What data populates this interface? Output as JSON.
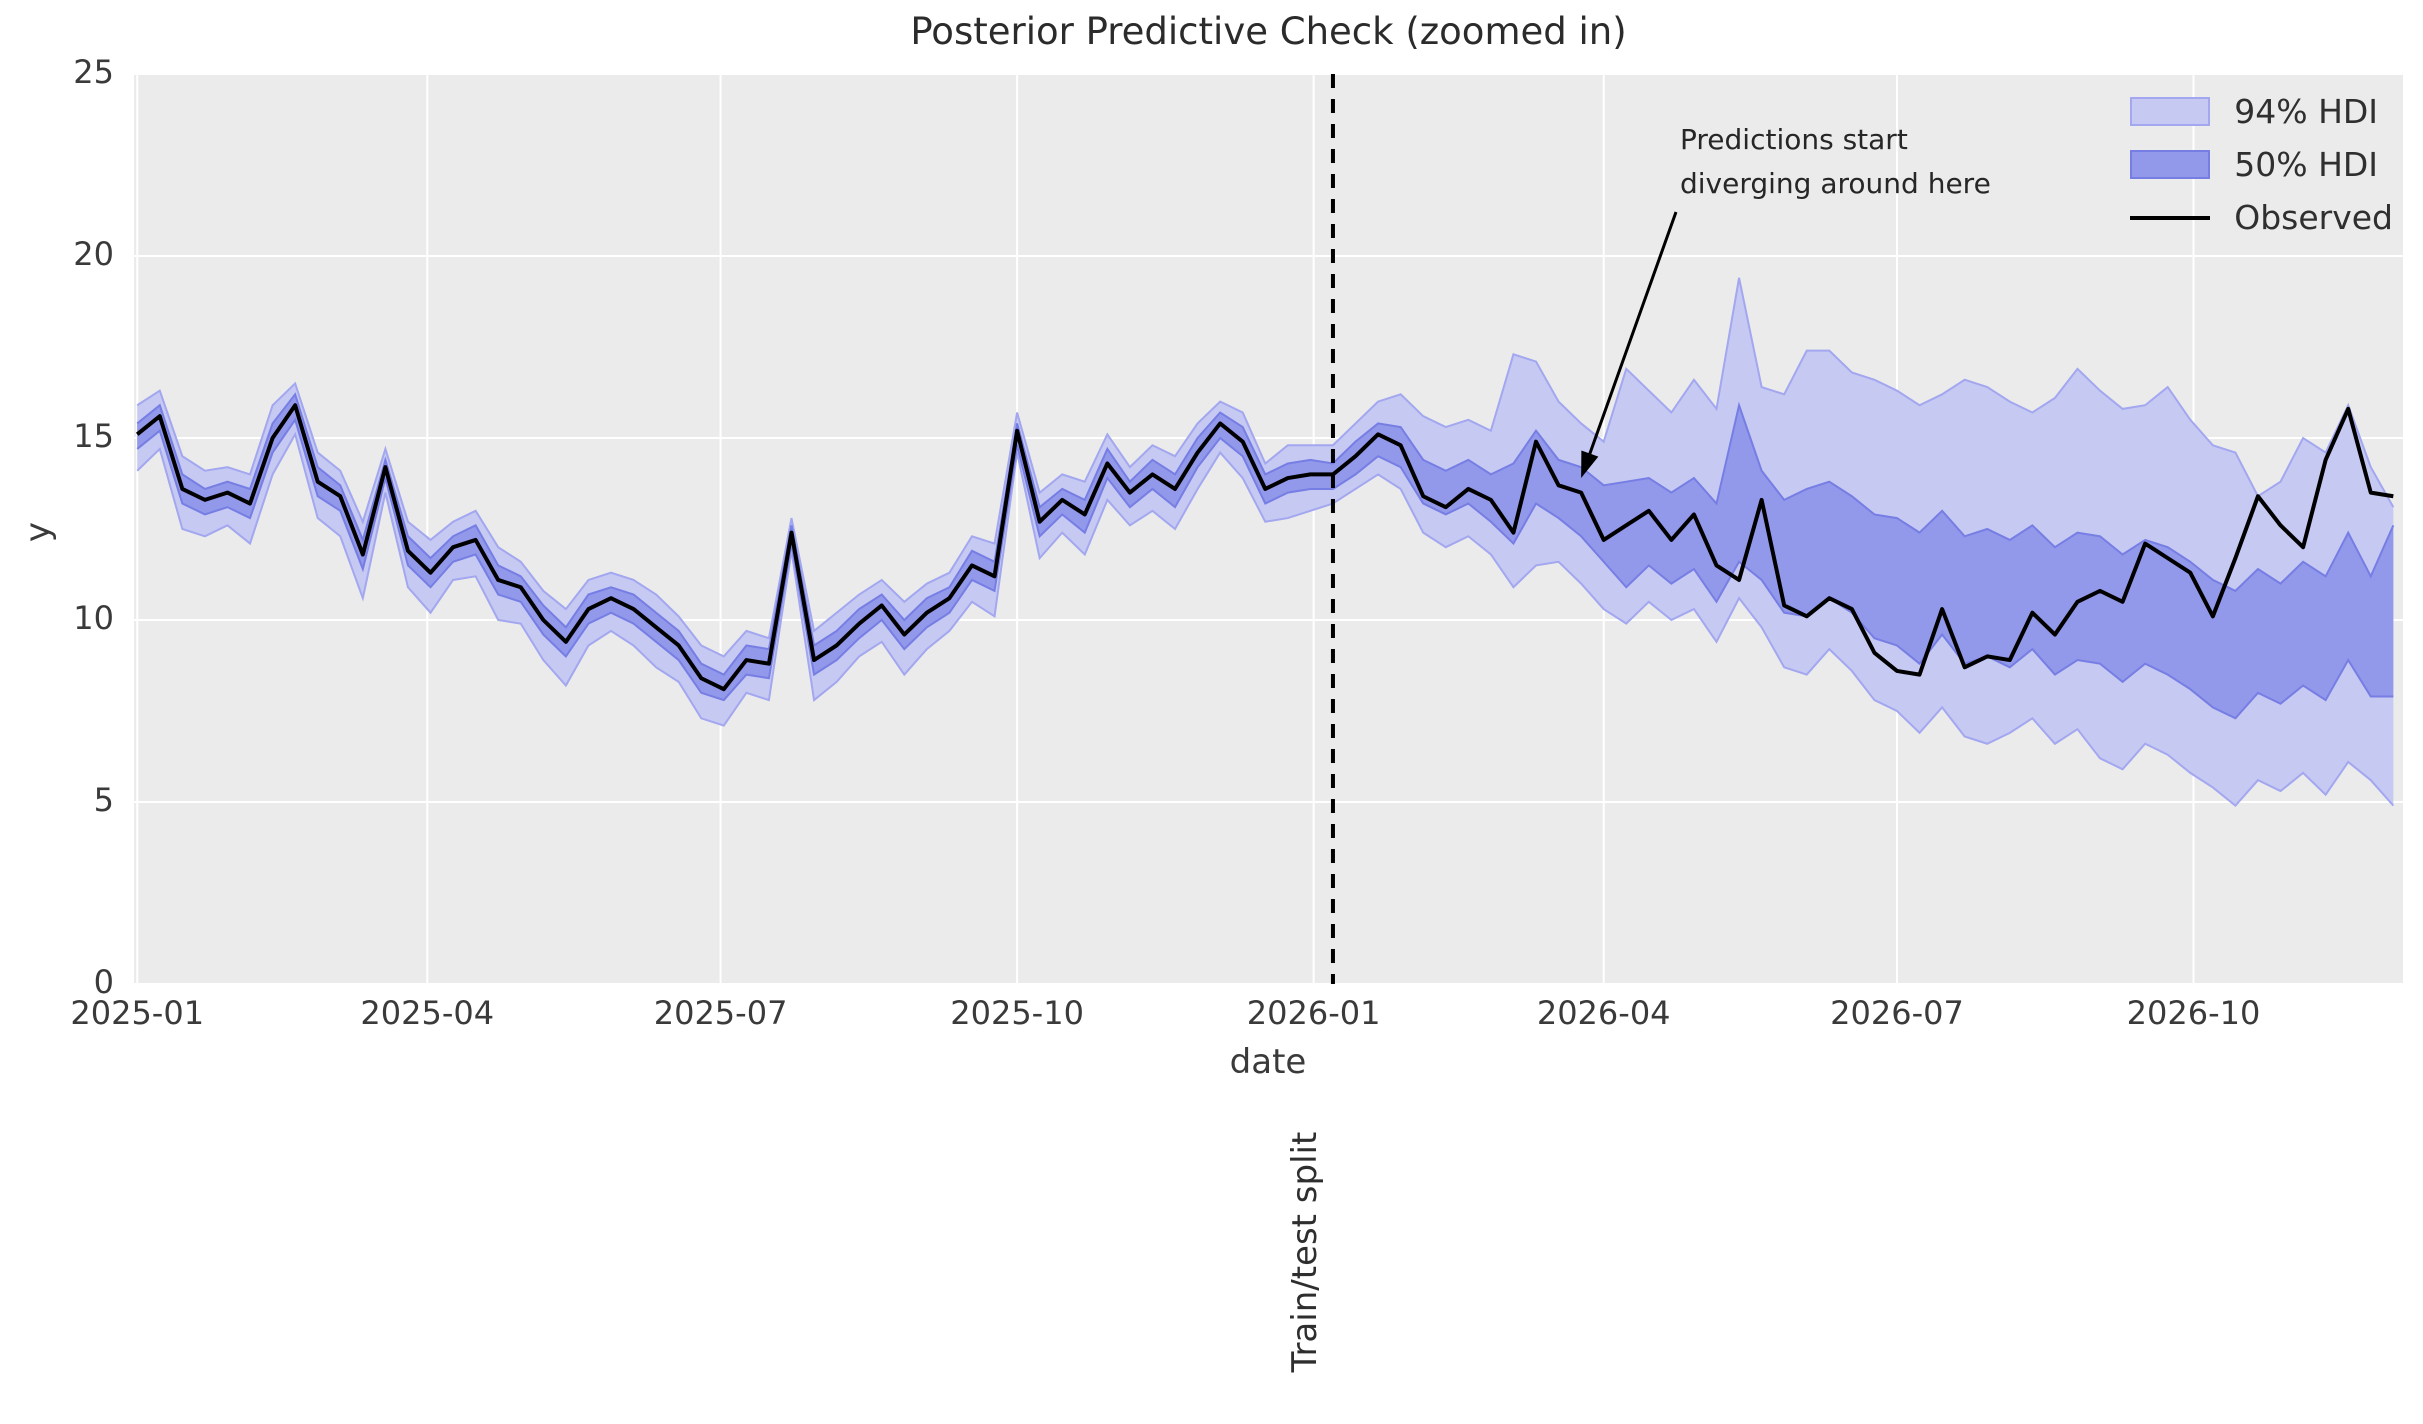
{
  "title": "Posterior Predictive Check (zoomed in)",
  "axes": {
    "xlabel": "date",
    "ylabel": "y",
    "y_ticks": [
      0,
      5,
      10,
      15,
      20,
      25
    ],
    "x_ticks": [
      {
        "label": "2025-01",
        "date": "2025-01-01"
      },
      {
        "label": "2025-04",
        "date": "2025-04-01"
      },
      {
        "label": "2025-07",
        "date": "2025-07-01"
      },
      {
        "label": "2025-10",
        "date": "2025-10-01"
      },
      {
        "label": "2026-01",
        "date": "2026-01-01"
      },
      {
        "label": "2026-04",
        "date": "2026-04-01"
      },
      {
        "label": "2026-07",
        "date": "2026-07-01"
      },
      {
        "label": "2026-10",
        "date": "2026-10-01"
      }
    ]
  },
  "legend": {
    "items": [
      {
        "label": "94% HDI",
        "swatch": "patch",
        "fill": "#c6c9f2",
        "edge": "#a2a7ef"
      },
      {
        "label": "50% HDI",
        "swatch": "patch",
        "fill": "#9298ea",
        "edge": "#767ee4"
      },
      {
        "label": "Observed",
        "swatch": "line",
        "color": "#000000"
      }
    ]
  },
  "annotation": {
    "line1": "Predictions start",
    "line2": "diverging around here",
    "arrow": {
      "date": "2026-03-25",
      "value": 13.9
    }
  },
  "split_line": {
    "label": "Train/test split",
    "date": "2026-01-07"
  },
  "colors": {
    "plot_bg": "#ebebeb",
    "grid": "#ffffff",
    "observed": "#000000",
    "hdi94_fill": "#c6c9f2",
    "hdi94_edge": "#a2a7ef",
    "hdi50_fill": "#9298ea",
    "hdi50_edge": "#767ee4",
    "split": "#000000",
    "text": "#3a3a3a"
  },
  "chart_data": {
    "type": "line",
    "title": "Posterior Predictive Check (zoomed in)",
    "xlabel": "date",
    "ylabel": "y",
    "x_start_date": "2025-01-01",
    "x_freq_days": 7,
    "xlim_dates": [
      "2024-12-31",
      "2026-12-05"
    ],
    "ylim": [
      0,
      25
    ],
    "grid": true,
    "legend_position": "upper right",
    "split_date": "2026-01-07",
    "series": [
      {
        "name": "Observed",
        "type": "line",
        "values": [
          15.1,
          15.6,
          13.6,
          13.3,
          13.5,
          13.2,
          15.0,
          15.9,
          13.8,
          13.4,
          11.8,
          14.2,
          11.9,
          11.3,
          12.0,
          12.2,
          11.1,
          10.9,
          10.0,
          9.4,
          10.3,
          10.6,
          10.3,
          9.8,
          9.3,
          8.4,
          8.1,
          8.9,
          8.8,
          12.4,
          8.9,
          9.3,
          9.9,
          10.4,
          9.6,
          10.2,
          10.6,
          11.5,
          11.2,
          15.2,
          12.7,
          13.3,
          12.9,
          14.3,
          13.5,
          14.0,
          13.6,
          14.6,
          15.4,
          14.9,
          13.6,
          13.9,
          14.0,
          14.0,
          14.5,
          15.1,
          14.8,
          13.4,
          13.1,
          13.6,
          13.3,
          12.4,
          14.9,
          13.7,
          13.5,
          12.2,
          12.6,
          13.0,
          12.2,
          12.9,
          11.5,
          11.1,
          13.3,
          10.4,
          10.1,
          10.6,
          10.3,
          9.1,
          8.6,
          8.5,
          10.3,
          8.7,
          9.0,
          8.9,
          10.2,
          9.6,
          10.5,
          10.8,
          10.5,
          12.1,
          11.7,
          11.3,
          10.1,
          11.7,
          13.4,
          12.6,
          12.0,
          14.4,
          15.8,
          13.5,
          13.4
        ]
      },
      {
        "name": "94% HDI upper",
        "type": "band-edge",
        "values": [
          15.9,
          16.3,
          14.5,
          14.1,
          14.2,
          14.0,
          15.9,
          16.5,
          14.6,
          14.1,
          12.7,
          14.7,
          12.7,
          12.2,
          12.7,
          13.0,
          12.0,
          11.6,
          10.8,
          10.3,
          11.1,
          11.3,
          11.1,
          10.7,
          10.1,
          9.3,
          9.0,
          9.7,
          9.5,
          12.8,
          9.7,
          10.2,
          10.7,
          11.1,
          10.5,
          11.0,
          11.3,
          12.3,
          12.1,
          15.7,
          13.5,
          14.0,
          13.8,
          15.1,
          14.2,
          14.8,
          14.5,
          15.4,
          16.0,
          15.7,
          14.3,
          14.8,
          14.8,
          14.8,
          15.4,
          16.0,
          16.2,
          15.6,
          15.3,
          15.5,
          15.2,
          17.3,
          17.1,
          16.0,
          15.4,
          14.9,
          16.9,
          16.3,
          15.7,
          16.6,
          15.8,
          19.4,
          16.4,
          16.2,
          17.4,
          17.4,
          16.8,
          16.6,
          16.3,
          15.9,
          16.2,
          16.6,
          16.4,
          16.0,
          15.7,
          16.1,
          16.9,
          16.3,
          15.8,
          15.9,
          16.4,
          15.5,
          14.8,
          14.6,
          13.4,
          13.8,
          15.0,
          14.6,
          15.9,
          14.2,
          13.1
        ]
      },
      {
        "name": "94% HDI lower",
        "type": "band-edge",
        "values": [
          14.1,
          14.7,
          12.5,
          12.3,
          12.6,
          12.1,
          14.0,
          15.1,
          12.8,
          12.3,
          10.6,
          13.5,
          10.9,
          10.2,
          11.1,
          11.2,
          10.0,
          9.9,
          8.9,
          8.2,
          9.3,
          9.7,
          9.3,
          8.7,
          8.3,
          7.3,
          7.1,
          8.0,
          7.8,
          11.9,
          7.8,
          8.3,
          9.0,
          9.4,
          8.5,
          9.2,
          9.7,
          10.5,
          10.1,
          14.6,
          11.7,
          12.4,
          11.8,
          13.3,
          12.6,
          13.0,
          12.5,
          13.6,
          14.6,
          13.9,
          12.7,
          12.8,
          13.0,
          13.2,
          13.6,
          14.0,
          13.6,
          12.4,
          12.0,
          12.3,
          11.8,
          10.9,
          11.5,
          11.6,
          11.0,
          10.3,
          9.9,
          10.5,
          10.0,
          10.3,
          9.4,
          10.6,
          9.8,
          8.7,
          8.5,
          9.2,
          8.6,
          7.8,
          7.5,
          6.9,
          7.6,
          6.8,
          6.6,
          6.9,
          7.3,
          6.6,
          7.0,
          6.2,
          5.9,
          6.6,
          6.3,
          5.8,
          5.4,
          4.9,
          5.6,
          5.3,
          5.8,
          5.2,
          6.1,
          5.6,
          4.9
        ]
      },
      {
        "name": "50% HDI upper",
        "type": "band-edge",
        "values": [
          15.4,
          15.9,
          14.0,
          13.6,
          13.8,
          13.6,
          15.4,
          16.2,
          14.2,
          13.7,
          12.2,
          14.4,
          12.3,
          11.7,
          12.3,
          12.6,
          11.5,
          11.2,
          10.4,
          9.8,
          10.7,
          10.9,
          10.7,
          10.2,
          9.7,
          8.8,
          8.5,
          9.3,
          9.2,
          12.6,
          9.3,
          9.7,
          10.3,
          10.7,
          10.0,
          10.6,
          10.9,
          11.9,
          11.6,
          15.4,
          13.1,
          13.6,
          13.3,
          14.7,
          13.8,
          14.4,
          14.0,
          15.0,
          15.7,
          15.3,
          14.0,
          14.3,
          14.4,
          14.3,
          14.9,
          15.4,
          15.3,
          14.4,
          14.1,
          14.4,
          14.0,
          14.3,
          15.2,
          14.4,
          14.2,
          13.7,
          13.8,
          13.9,
          13.5,
          13.9,
          13.2,
          15.9,
          14.1,
          13.3,
          13.6,
          13.8,
          13.4,
          12.9,
          12.8,
          12.4,
          13.0,
          12.3,
          12.5,
          12.2,
          12.6,
          12.0,
          12.4,
          12.3,
          11.8,
          12.2,
          12.0,
          11.6,
          11.1,
          10.8,
          11.4,
          11.0,
          11.6,
          11.2,
          12.4,
          11.2,
          12.6
        ]
      },
      {
        "name": "50% HDI lower",
        "type": "band-edge",
        "values": [
          14.7,
          15.2,
          13.2,
          12.9,
          13.1,
          12.8,
          14.6,
          15.5,
          13.4,
          13.0,
          11.4,
          13.9,
          11.5,
          10.9,
          11.6,
          11.8,
          10.7,
          10.5,
          9.6,
          9.0,
          9.9,
          10.2,
          9.9,
          9.4,
          8.9,
          8.0,
          7.8,
          8.5,
          8.4,
          12.1,
          8.5,
          8.9,
          9.5,
          10.0,
          9.2,
          9.8,
          10.2,
          11.1,
          10.8,
          14.8,
          12.3,
          12.9,
          12.4,
          13.9,
          13.1,
          13.6,
          13.1,
          14.2,
          15.0,
          14.5,
          13.2,
          13.5,
          13.6,
          13.6,
          14.0,
          14.5,
          14.2,
          13.2,
          12.9,
          13.2,
          12.7,
          12.1,
          13.2,
          12.8,
          12.3,
          11.6,
          10.9,
          11.5,
          11.0,
          11.4,
          10.5,
          11.6,
          11.1,
          10.2,
          10.1,
          10.6,
          10.2,
          9.5,
          9.3,
          8.8,
          9.6,
          8.8,
          9.0,
          8.7,
          9.2,
          8.5,
          8.9,
          8.8,
          8.3,
          8.8,
          8.5,
          8.1,
          7.6,
          7.3,
          8.0,
          7.7,
          8.2,
          7.8,
          8.9,
          7.9,
          7.9
        ]
      }
    ]
  }
}
